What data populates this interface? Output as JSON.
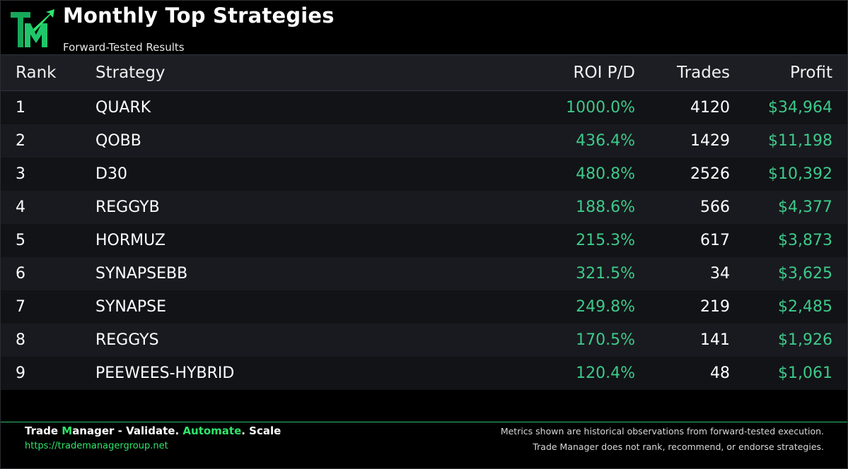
{
  "header": {
    "logo_icon": "tm-logo-icon",
    "title": "Monthly Top Strategies",
    "subtitle": "Forward-Tested Results"
  },
  "table": {
    "columns": [
      "Rank",
      "Strategy",
      "ROI P/D",
      "Trades",
      "Profit"
    ],
    "rows": [
      {
        "rank": "1",
        "strategy": "QUARK",
        "roi": "1000.0%",
        "trades": "4120",
        "profit": "$34,964"
      },
      {
        "rank": "2",
        "strategy": "QOBB",
        "roi": "436.4%",
        "trades": "1429",
        "profit": "$11,198"
      },
      {
        "rank": "3",
        "strategy": "D30",
        "roi": "480.8%",
        "trades": "2526",
        "profit": "$10,392"
      },
      {
        "rank": "4",
        "strategy": "REGGYB",
        "roi": "188.6%",
        "trades": "566",
        "profit": "$4,377"
      },
      {
        "rank": "5",
        "strategy": "HORMUZ",
        "roi": "215.3%",
        "trades": "617",
        "profit": "$3,873"
      },
      {
        "rank": "6",
        "strategy": "SYNAPSEBB",
        "roi": "321.5%",
        "trades": "34",
        "profit": "$3,625"
      },
      {
        "rank": "7",
        "strategy": "SYNAPSE",
        "roi": "249.8%",
        "trades": "219",
        "profit": "$2,485"
      },
      {
        "rank": "8",
        "strategy": "REGGYS",
        "roi": "170.5%",
        "trades": "141",
        "profit": "$1,926"
      },
      {
        "rank": "9",
        "strategy": "PEEWEES-HYBRID",
        "roi": "120.4%",
        "trades": "48",
        "profit": "$1,061"
      }
    ]
  },
  "footer": {
    "tagline": {
      "part1": "Trade ",
      "part2": "M",
      "part3": "anager - Validate. ",
      "part4": "Automate",
      "part5": ". Scale"
    },
    "link": "https://trademanagergroup.net",
    "disclaimer_line1": "Metrics shown are historical observations from forward-tested execution.",
    "disclaimer_line2": "Trade Manager does not rank, recommend, or endorse strategies."
  },
  "colors": {
    "accent_green": "#2ee66b",
    "value_green": "#3ec98a",
    "header_row_bg": "#1c1e24"
  }
}
